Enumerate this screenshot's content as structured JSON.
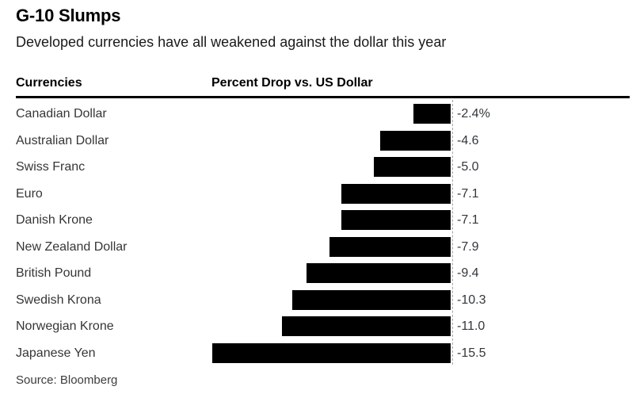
{
  "header": {
    "title": "G-10 Slumps",
    "subtitle": "Developed currencies have all weakened against the dollar this year"
  },
  "table_headers": {
    "left": "Currencies",
    "right": "Percent Drop vs. US Dollar"
  },
  "footer": {
    "source": "Source: Bloomberg"
  },
  "colors": {
    "background": "#ffffff",
    "bar": "#000000",
    "rule": "#000000",
    "baseline_dash": "#a6a6a6",
    "label_text": "#363636",
    "title_text": "#000000"
  },
  "chart_data": {
    "type": "bar",
    "orientation": "horizontal",
    "title": "G-10 Slumps",
    "subtitle": "Developed currencies have all weakened against the dollar this year",
    "xlabel": "Percent Drop vs. US Dollar",
    "ylabel": "Currencies",
    "categories": [
      "Canadian Dollar",
      "Australian Dollar",
      "Swiss Franc",
      "Euro",
      "Danish Krone",
      "New Zealand Dollar",
      "British Pound",
      "Swedish Krona",
      "Norwegian Krone",
      "Japanese Yen"
    ],
    "values": [
      -2.4,
      -4.6,
      -5.0,
      -7.1,
      -7.1,
      -7.9,
      -9.4,
      -10.3,
      -11.0,
      -15.5
    ],
    "value_labels": [
      "-2.4%",
      "-4.6",
      "-5.0",
      "-7.1",
      "-7.1",
      "-7.9",
      "-9.4",
      "-10.3",
      "-11.0",
      "-15.5"
    ],
    "xlim": [
      -16.5,
      0
    ],
    "grid": "off",
    "legend": "none",
    "baseline": "dashed vertical line at 0",
    "bar_color": "#000000",
    "source": "Source: Bloomberg"
  }
}
